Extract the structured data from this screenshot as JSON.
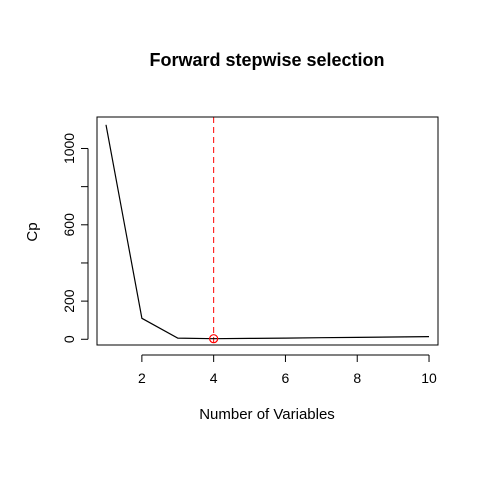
{
  "chart_data": {
    "type": "line",
    "title": "Forward stepwise selection",
    "xlabel": "Number of Variables",
    "ylabel": "Cp",
    "x": [
      1,
      2,
      3,
      4,
      5,
      6,
      7,
      8,
      9,
      10
    ],
    "series": [
      {
        "values": [
          1124,
          110,
          6,
          3,
          4.5,
          6,
          8,
          10,
          12,
          14
        ],
        "color": "#000000"
      }
    ],
    "xlim": [
      0.75,
      10.25
    ],
    "ylim": [
      -30,
      1165
    ],
    "x_ticks": [
      2,
      4,
      6,
      8,
      10
    ],
    "x_tick_labels": [
      "2",
      "4",
      "6",
      "8",
      "10"
    ],
    "y_ticks": [
      0,
      200,
      400,
      600,
      800,
      1000
    ],
    "y_tick_labels": [
      "0",
      "200",
      "",
      "600",
      "",
      "1000"
    ],
    "reference_line": {
      "x": 4,
      "color": "#ff0000",
      "style": "dashed"
    },
    "highlight_point": {
      "x": 4,
      "y": 3,
      "color": "#ff0000",
      "marker": "open-circle"
    },
    "grid": false,
    "legend": "none"
  }
}
